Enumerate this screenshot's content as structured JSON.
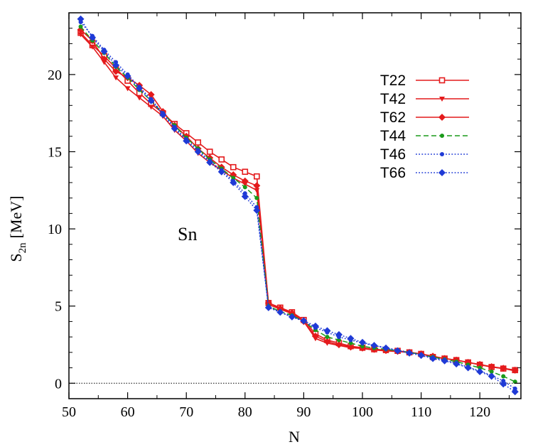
{
  "chart_data": {
    "type": "line",
    "title": "",
    "xlabel": "N",
    "ylabel_main": "S",
    "ylabel_sub": "2n",
    "ylabel_unit": "[MeV]",
    "xlim": [
      50,
      127
    ],
    "ylim": [
      -1,
      24
    ],
    "xticks": [
      50,
      60,
      70,
      80,
      90,
      100,
      110,
      120
    ],
    "yticks": [
      0,
      5,
      10,
      15,
      20
    ],
    "grid": false,
    "legend_position": "top-right",
    "annotation": "Sn",
    "reference_line_y": 0,
    "series": [
      {
        "name": "T22",
        "color": "#e41a1c",
        "dash": "solid",
        "marker": "square",
        "x": [
          52,
          54,
          56,
          58,
          60,
          62,
          64,
          66,
          68,
          70,
          72,
          74,
          76,
          78,
          80,
          82,
          84,
          86,
          88,
          90,
          92,
          94,
          96,
          98,
          100,
          102,
          104,
          106,
          108,
          110,
          112,
          114,
          116,
          118,
          120,
          122,
          124,
          126
        ],
        "y": [
          22.7,
          21.9,
          21.2,
          20.4,
          19.6,
          18.8,
          18.1,
          17.5,
          16.8,
          16.2,
          15.6,
          15.0,
          14.5,
          14.0,
          13.7,
          13.4,
          5.2,
          4.9,
          4.6,
          4.1,
          3.2,
          2.8,
          2.6,
          2.4,
          2.3,
          2.2,
          2.15,
          2.1,
          2.0,
          1.9,
          1.7,
          1.6,
          1.5,
          1.35,
          1.2,
          1.05,
          0.95,
          0.85
        ]
      },
      {
        "name": "T42",
        "color": "#e41a1c",
        "dash": "solid",
        "marker": "triangle",
        "x": [
          52,
          54,
          56,
          58,
          60,
          62,
          64,
          66,
          68,
          70,
          72,
          74,
          76,
          78,
          80,
          82,
          84,
          86,
          88,
          90,
          92,
          94,
          96,
          98,
          100,
          102,
          104,
          106,
          108,
          110,
          112,
          114,
          116,
          118,
          120,
          122,
          124,
          126
        ],
        "y": [
          22.6,
          21.8,
          20.8,
          19.8,
          19.1,
          18.5,
          17.9,
          17.3,
          16.4,
          15.7,
          14.9,
          14.3,
          13.8,
          13.3,
          12.9,
          12.5,
          5.1,
          4.8,
          4.5,
          4.0,
          2.9,
          2.6,
          2.45,
          2.3,
          2.25,
          2.15,
          2.1,
          2.05,
          2.0,
          1.9,
          1.75,
          1.6,
          1.5,
          1.35,
          1.2,
          1.05,
          0.95,
          0.8
        ]
      },
      {
        "name": "T62",
        "color": "#e41a1c",
        "dash": "solid",
        "marker": "diamond",
        "x": [
          52,
          54,
          56,
          58,
          60,
          62,
          64,
          66,
          68,
          70,
          72,
          74,
          76,
          78,
          80,
          82,
          84,
          86,
          88,
          90,
          92,
          94,
          96,
          98,
          100,
          102,
          104,
          106,
          108,
          110,
          112,
          114,
          116,
          118,
          120,
          122,
          124,
          126
        ],
        "y": [
          22.9,
          22.2,
          21.0,
          20.2,
          19.8,
          19.3,
          18.7,
          17.6,
          16.7,
          16.0,
          15.2,
          14.6,
          14.0,
          13.5,
          13.1,
          12.8,
          5.2,
          4.85,
          4.55,
          4.0,
          3.05,
          2.7,
          2.5,
          2.35,
          2.28,
          2.2,
          2.12,
          2.07,
          2.0,
          1.9,
          1.75,
          1.6,
          1.5,
          1.35,
          1.22,
          1.07,
          0.97,
          0.85
        ]
      },
      {
        "name": "T44",
        "color": "#1a9a1a",
        "dash": "dashed",
        "marker": "circle",
        "x": [
          52,
          54,
          56,
          58,
          60,
          62,
          64,
          66,
          68,
          70,
          72,
          74,
          76,
          78,
          80,
          82,
          84,
          86,
          88,
          90,
          92,
          94,
          96,
          98,
          100,
          102,
          104,
          106,
          108,
          110,
          112,
          114,
          116,
          118,
          120,
          122,
          124,
          126
        ],
        "y": [
          23.1,
          22.2,
          21.4,
          20.5,
          19.8,
          19.0,
          18.3,
          17.5,
          16.7,
          15.9,
          15.2,
          14.5,
          13.9,
          13.3,
          12.7,
          12.0,
          5.0,
          4.65,
          4.4,
          4.0,
          3.45,
          3.0,
          2.8,
          2.6,
          2.4,
          2.28,
          2.2,
          2.1,
          2.0,
          1.85,
          1.7,
          1.55,
          1.4,
          1.2,
          1.0,
          0.75,
          0.45,
          0.1
        ]
      },
      {
        "name": "T46",
        "color": "#1f3ad6",
        "dash": "dotted",
        "marker": "circle",
        "x": [
          52,
          54,
          56,
          58,
          60,
          62,
          64,
          66,
          68,
          70,
          72,
          74,
          76,
          78,
          80,
          82,
          84,
          86,
          88,
          90,
          92,
          94,
          96,
          98,
          100,
          102,
          104,
          106,
          108,
          110,
          112,
          114,
          116,
          118,
          120,
          122,
          124,
          126
        ],
        "y": [
          23.4,
          22.5,
          21.6,
          20.8,
          20.0,
          19.2,
          18.4,
          17.5,
          16.6,
          15.8,
          15.1,
          14.4,
          13.8,
          13.1,
          12.3,
          11.4,
          4.95,
          4.6,
          4.3,
          4.0,
          3.6,
          3.3,
          3.0,
          2.8,
          2.6,
          2.45,
          2.3,
          2.15,
          2.0,
          1.85,
          1.65,
          1.5,
          1.3,
          1.05,
          0.8,
          0.5,
          0.15,
          -0.35
        ]
      },
      {
        "name": "T66",
        "color": "#1f3ad6",
        "dash": "dotted",
        "marker": "diamond",
        "x": [
          52,
          54,
          56,
          58,
          60,
          62,
          64,
          66,
          68,
          70,
          72,
          74,
          76,
          78,
          80,
          82,
          84,
          86,
          88,
          90,
          92,
          94,
          96,
          98,
          100,
          102,
          104,
          106,
          108,
          110,
          112,
          114,
          116,
          118,
          120,
          122,
          124,
          126
        ],
        "y": [
          23.6,
          22.4,
          21.5,
          20.6,
          19.9,
          19.1,
          18.3,
          17.4,
          16.5,
          15.7,
          15.0,
          14.3,
          13.7,
          13.0,
          12.1,
          11.2,
          4.9,
          4.6,
          4.3,
          4.05,
          3.7,
          3.4,
          3.15,
          2.9,
          2.65,
          2.45,
          2.28,
          2.1,
          1.95,
          1.8,
          1.6,
          1.45,
          1.25,
          1.0,
          0.75,
          0.45,
          -0.05,
          -0.55
        ]
      }
    ]
  }
}
